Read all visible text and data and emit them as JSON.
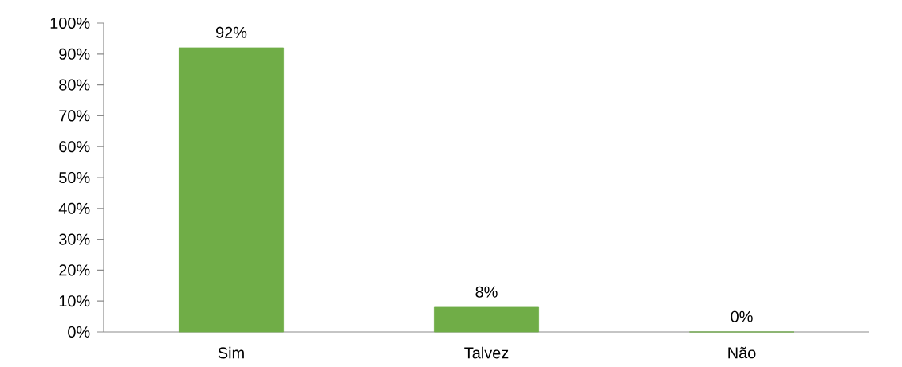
{
  "chart_data": {
    "type": "bar",
    "categories": [
      "Sim",
      "Talvez",
      "Não"
    ],
    "values": [
      92,
      8,
      0
    ],
    "value_labels": [
      "92%",
      "8%",
      "0%"
    ],
    "color": "#70ad47",
    "ylim": [
      0,
      100
    ],
    "yticks": [
      {
        "value": 0,
        "label": "0%"
      },
      {
        "value": 10,
        "label": "10%"
      },
      {
        "value": 20,
        "label": "20%"
      },
      {
        "value": 30,
        "label": "30%"
      },
      {
        "value": 40,
        "label": "40%"
      },
      {
        "value": 50,
        "label": "50%"
      },
      {
        "value": 60,
        "label": "60%"
      },
      {
        "value": 70,
        "label": "70%"
      },
      {
        "value": 80,
        "label": "80%"
      },
      {
        "value": 90,
        "label": "90%"
      },
      {
        "value": 100,
        "label": "100%"
      }
    ],
    "grid": false
  }
}
